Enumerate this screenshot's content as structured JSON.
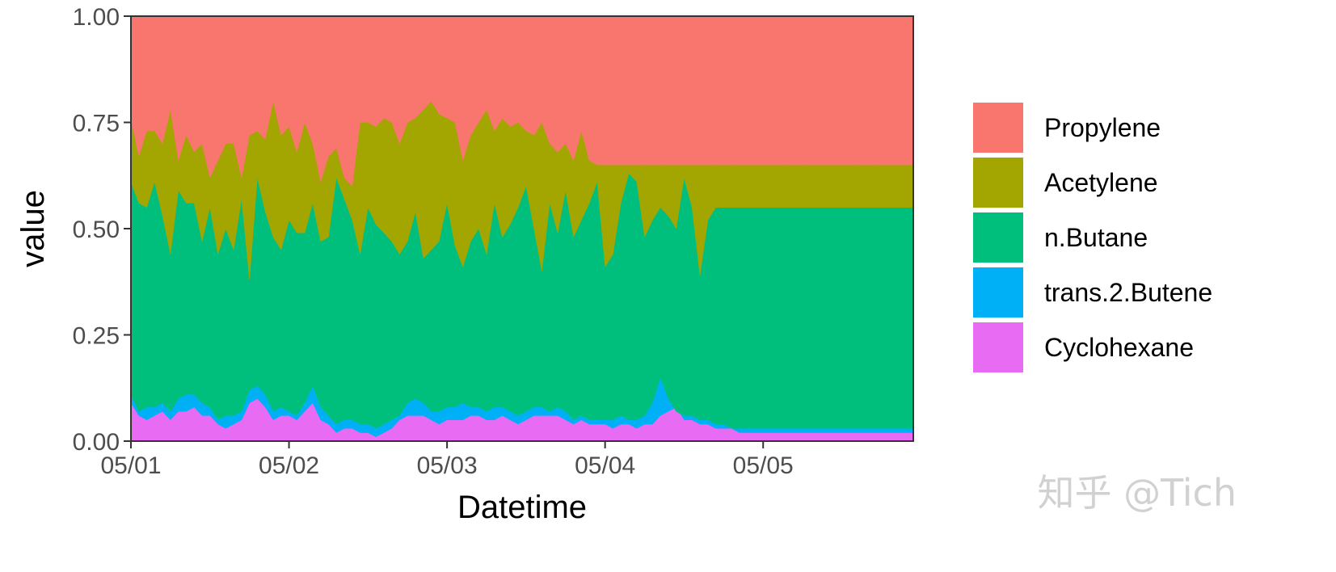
{
  "chart_data": {
    "type": "area",
    "stacked": true,
    "normalized": true,
    "xlabel": "Datetime",
    "ylabel": "value",
    "x_ticks": [
      "05/01",
      "05/02",
      "05/03",
      "05/04",
      "05/05"
    ],
    "x_tick_positions_days": [
      0,
      1,
      2,
      3,
      4
    ],
    "xlim": [
      0,
      4.95
    ],
    "ylim": [
      0,
      1
    ],
    "y_ticks": [
      "0.00",
      "0.25",
      "0.50",
      "0.75",
      "1.00"
    ],
    "y_tick_values": [
      0,
      0.25,
      0.5,
      0.75,
      1
    ],
    "grid": false,
    "legend_position": "right",
    "x_days": [
      0,
      0.05,
      0.1,
      0.15,
      0.2,
      0.25,
      0.3,
      0.35,
      0.4,
      0.45,
      0.5,
      0.55,
      0.6,
      0.65,
      0.7,
      0.75,
      0.8,
      0.85,
      0.9,
      0.95,
      1,
      1.05,
      1.1,
      1.15,
      1.2,
      1.25,
      1.3,
      1.35,
      1.4,
      1.45,
      1.5,
      1.55,
      1.6,
      1.65,
      1.7,
      1.75,
      1.8,
      1.85,
      1.9,
      1.95,
      2,
      2.05,
      2.1,
      2.15,
      2.2,
      2.25,
      2.3,
      2.35,
      2.4,
      2.45,
      2.5,
      2.55,
      2.6,
      2.65,
      2.7,
      2.75,
      2.8,
      2.85,
      2.9,
      2.95,
      3,
      3.05,
      3.1,
      3.15,
      3.2,
      3.25,
      3.3,
      3.35,
      3.4,
      3.45,
      3.5,
      3.55,
      3.6,
      3.65,
      3.7,
      3.75,
      3.8,
      3.85,
      3.9,
      3.95,
      4,
      4.05,
      4.1,
      4.15,
      4.2,
      4.25,
      4.3,
      4.35,
      4.4,
      4.45,
      4.5,
      4.55,
      4.6,
      4.65,
      4.7,
      4.75,
      4.8,
      4.85,
      4.9,
      4.95
    ],
    "cumulative_tops": {
      "Cyclohexane": [
        0.09,
        0.06,
        0.05,
        0.06,
        0.07,
        0.05,
        0.07,
        0.07,
        0.08,
        0.06,
        0.06,
        0.04,
        0.03,
        0.04,
        0.05,
        0.09,
        0.1,
        0.08,
        0.05,
        0.06,
        0.06,
        0.05,
        0.07,
        0.09,
        0.05,
        0.04,
        0.02,
        0.03,
        0.03,
        0.02,
        0.02,
        0.01,
        0.02,
        0.03,
        0.05,
        0.06,
        0.06,
        0.06,
        0.05,
        0.04,
        0.05,
        0.05,
        0.05,
        0.06,
        0.06,
        0.05,
        0.05,
        0.06,
        0.05,
        0.04,
        0.05,
        0.06,
        0.06,
        0.06,
        0.06,
        0.05,
        0.04,
        0.05,
        0.04,
        0.04,
        0.04,
        0.03,
        0.04,
        0.04,
        0.03,
        0.04,
        0.04,
        0.06,
        0.07,
        0.08,
        0.05,
        0.05,
        0.04,
        0.04,
        0.03,
        0.03,
        0.03,
        0.02,
        0.02,
        0.02,
        0.02,
        0.02,
        0.02,
        0.02,
        0.02,
        0.02,
        0.02,
        0.02,
        0.02,
        0.02,
        0.02,
        0.02,
        0.02,
        0.02,
        0.02,
        0.02,
        0.02,
        0.02,
        0.02,
        0.02
      ],
      "trans.2.Butene": [
        0.11,
        0.07,
        0.08,
        0.08,
        0.09,
        0.07,
        0.1,
        0.11,
        0.11,
        0.09,
        0.08,
        0.05,
        0.06,
        0.06,
        0.07,
        0.12,
        0.13,
        0.11,
        0.07,
        0.08,
        0.07,
        0.06,
        0.09,
        0.13,
        0.08,
        0.06,
        0.04,
        0.05,
        0.05,
        0.04,
        0.04,
        0.03,
        0.04,
        0.05,
        0.06,
        0.09,
        0.1,
        0.09,
        0.07,
        0.07,
        0.08,
        0.08,
        0.09,
        0.08,
        0.08,
        0.07,
        0.08,
        0.08,
        0.07,
        0.06,
        0.07,
        0.08,
        0.08,
        0.07,
        0.08,
        0.07,
        0.05,
        0.06,
        0.05,
        0.05,
        0.05,
        0.05,
        0.06,
        0.05,
        0.05,
        0.06,
        0.09,
        0.15,
        0.1,
        0.07,
        0.06,
        0.06,
        0.05,
        0.05,
        0.04,
        0.04,
        0.03,
        0.03,
        0.03,
        0.03,
        0.03,
        0.03,
        0.03,
        0.03,
        0.03,
        0.03,
        0.03,
        0.03,
        0.03,
        0.03,
        0.03,
        0.03,
        0.03,
        0.03,
        0.03,
        0.03,
        0.03,
        0.03,
        0.03,
        0.03
      ],
      "n.Butane": [
        0.61,
        0.56,
        0.55,
        0.61,
        0.53,
        0.44,
        0.59,
        0.56,
        0.56,
        0.47,
        0.55,
        0.44,
        0.5,
        0.45,
        0.57,
        0.38,
        0.62,
        0.54,
        0.48,
        0.45,
        0.52,
        0.49,
        0.49,
        0.56,
        0.47,
        0.48,
        0.62,
        0.57,
        0.52,
        0.44,
        0.55,
        0.51,
        0.49,
        0.47,
        0.44,
        0.47,
        0.54,
        0.43,
        0.45,
        0.47,
        0.56,
        0.46,
        0.41,
        0.47,
        0.5,
        0.44,
        0.56,
        0.48,
        0.51,
        0.55,
        0.6,
        0.5,
        0.4,
        0.56,
        0.49,
        0.59,
        0.48,
        0.52,
        0.56,
        0.61,
        0.41,
        0.44,
        0.56,
        0.63,
        0.61,
        0.48,
        0.52,
        0.55,
        0.53,
        0.5,
        0.62,
        0.55,
        0.39,
        0.52,
        0.55,
        0.55,
        0.55,
        0.55,
        0.55,
        0.55,
        0.55,
        0.55,
        0.55,
        0.55,
        0.55,
        0.55,
        0.55,
        0.55,
        0.55,
        0.55,
        0.55,
        0.55,
        0.55,
        0.55,
        0.55,
        0.55,
        0.55,
        0.55,
        0.55,
        0.55
      ],
      "Acetylene": [
        0.76,
        0.67,
        0.73,
        0.73,
        0.7,
        0.78,
        0.66,
        0.72,
        0.68,
        0.7,
        0.62,
        0.66,
        0.7,
        0.7,
        0.62,
        0.72,
        0.73,
        0.71,
        0.8,
        0.72,
        0.74,
        0.68,
        0.75,
        0.7,
        0.61,
        0.67,
        0.69,
        0.62,
        0.6,
        0.75,
        0.75,
        0.74,
        0.76,
        0.75,
        0.7,
        0.75,
        0.76,
        0.78,
        0.8,
        0.77,
        0.76,
        0.75,
        0.66,
        0.72,
        0.75,
        0.78,
        0.73,
        0.76,
        0.74,
        0.75,
        0.73,
        0.72,
        0.75,
        0.7,
        0.68,
        0.7,
        0.66,
        0.73,
        0.66,
        0.65,
        0.65,
        0.65,
        0.65,
        0.65,
        0.65,
        0.65,
        0.65,
        0.65,
        0.65,
        0.65,
        0.65,
        0.65,
        0.65,
        0.65,
        0.65,
        0.65,
        0.65,
        0.65,
        0.65,
        0.65,
        0.65,
        0.65,
        0.65,
        0.65,
        0.65,
        0.65,
        0.65,
        0.65,
        0.65,
        0.65,
        0.65,
        0.65,
        0.65,
        0.65,
        0.65,
        0.65,
        0.65,
        0.65,
        0.65,
        0.65
      ],
      "Propylene": [
        1,
        1,
        1,
        1,
        1,
        1,
        1,
        1,
        1,
        1,
        1,
        1,
        1,
        1,
        1,
        1,
        1,
        1,
        1,
        1,
        1,
        1,
        1,
        1,
        1,
        1,
        1,
        1,
        1,
        1,
        1,
        1,
        1,
        1,
        1,
        1,
        1,
        1,
        1,
        1,
        1,
        1,
        1,
        1,
        1,
        1,
        1,
        1,
        1,
        1,
        1,
        1,
        1,
        1,
        1,
        1,
        1,
        1,
        1,
        1,
        1,
        1,
        1,
        1,
        1,
        1,
        1,
        1,
        1,
        1,
        1,
        1,
        1,
        1,
        1,
        1,
        1,
        1,
        1,
        1,
        1,
        1,
        1,
        1,
        1,
        1,
        1,
        1,
        1,
        1,
        1,
        1,
        1,
        1,
        1,
        1,
        1,
        1,
        1,
        1
      ]
    },
    "series": [
      {
        "name": "Propylene",
        "color": "#F8766D"
      },
      {
        "name": "Acetylene",
        "color": "#A3A500"
      },
      {
        "name": "n.Butane",
        "color": "#00BF7D"
      },
      {
        "name": "trans.2.Butene",
        "color": "#00B0F6"
      },
      {
        "name": "Cyclohexane",
        "color": "#E76BF3"
      }
    ],
    "legend_order": [
      "Propylene",
      "Acetylene",
      "n.Butane",
      "trans.2.Butene",
      "Cyclohexane"
    ]
  },
  "watermark": "知乎 @Tich"
}
